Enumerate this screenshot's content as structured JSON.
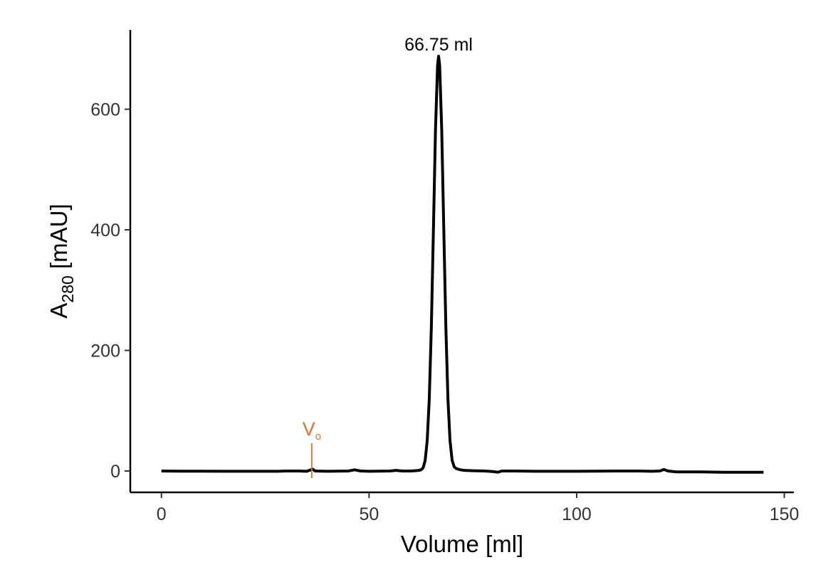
{
  "chart_data": {
    "type": "line",
    "xlabel": "Volume [ml]",
    "ylabel": "A",
    "ylabel_subscript": "280",
    "ylabel_suffix": " [mAU]",
    "peak_label": "66.75 ml",
    "void_volume": {
      "label": "V",
      "subscript": "o",
      "x": 36.2,
      "color": "#e8702a"
    },
    "color": "#000000",
    "x": [
      0,
      5,
      10,
      15,
      20,
      25,
      28,
      30,
      33,
      35,
      36,
      36.5,
      37,
      40,
      45,
      46.5,
      48,
      50,
      55,
      56.5,
      58,
      60,
      61,
      62,
      62.5,
      63,
      63.5,
      64,
      64.5,
      65,
      65.5,
      66,
      66.5,
      66.75,
      67,
      67.5,
      68,
      68.5,
      69,
      69.5,
      70,
      70.5,
      71,
      72,
      73,
      75,
      78,
      80,
      81,
      82,
      85,
      90,
      100,
      110,
      115,
      118,
      120,
      121,
      122,
      124,
      130,
      135,
      140,
      145
    ],
    "values": [
      0,
      -0.3,
      -0.3,
      -0.5,
      -0.5,
      -0.5,
      -0.5,
      0,
      0,
      -0.5,
      2,
      3,
      0,
      -0.5,
      0,
      2,
      0,
      -0.5,
      0,
      1,
      0,
      0,
      0.5,
      1,
      2,
      5,
      17,
      50,
      119,
      238,
      400,
      566,
      673,
      688,
      673,
      566,
      400,
      238,
      119,
      50,
      18,
      7,
      4,
      2,
      1,
      0.5,
      0,
      -1,
      -2,
      0,
      0,
      -0.5,
      -0.5,
      0,
      0,
      -0.5,
      0,
      2.5,
      0,
      -1.5,
      -1.5,
      -2,
      -2,
      -2
    ],
    "xlim": [
      -7.5,
      152.3
    ],
    "ylim": [
      -35.4,
      731.6
    ],
    "xticks": [
      0,
      50,
      100,
      150
    ],
    "yticks": [
      0,
      200,
      400,
      600
    ],
    "grid": false
  }
}
